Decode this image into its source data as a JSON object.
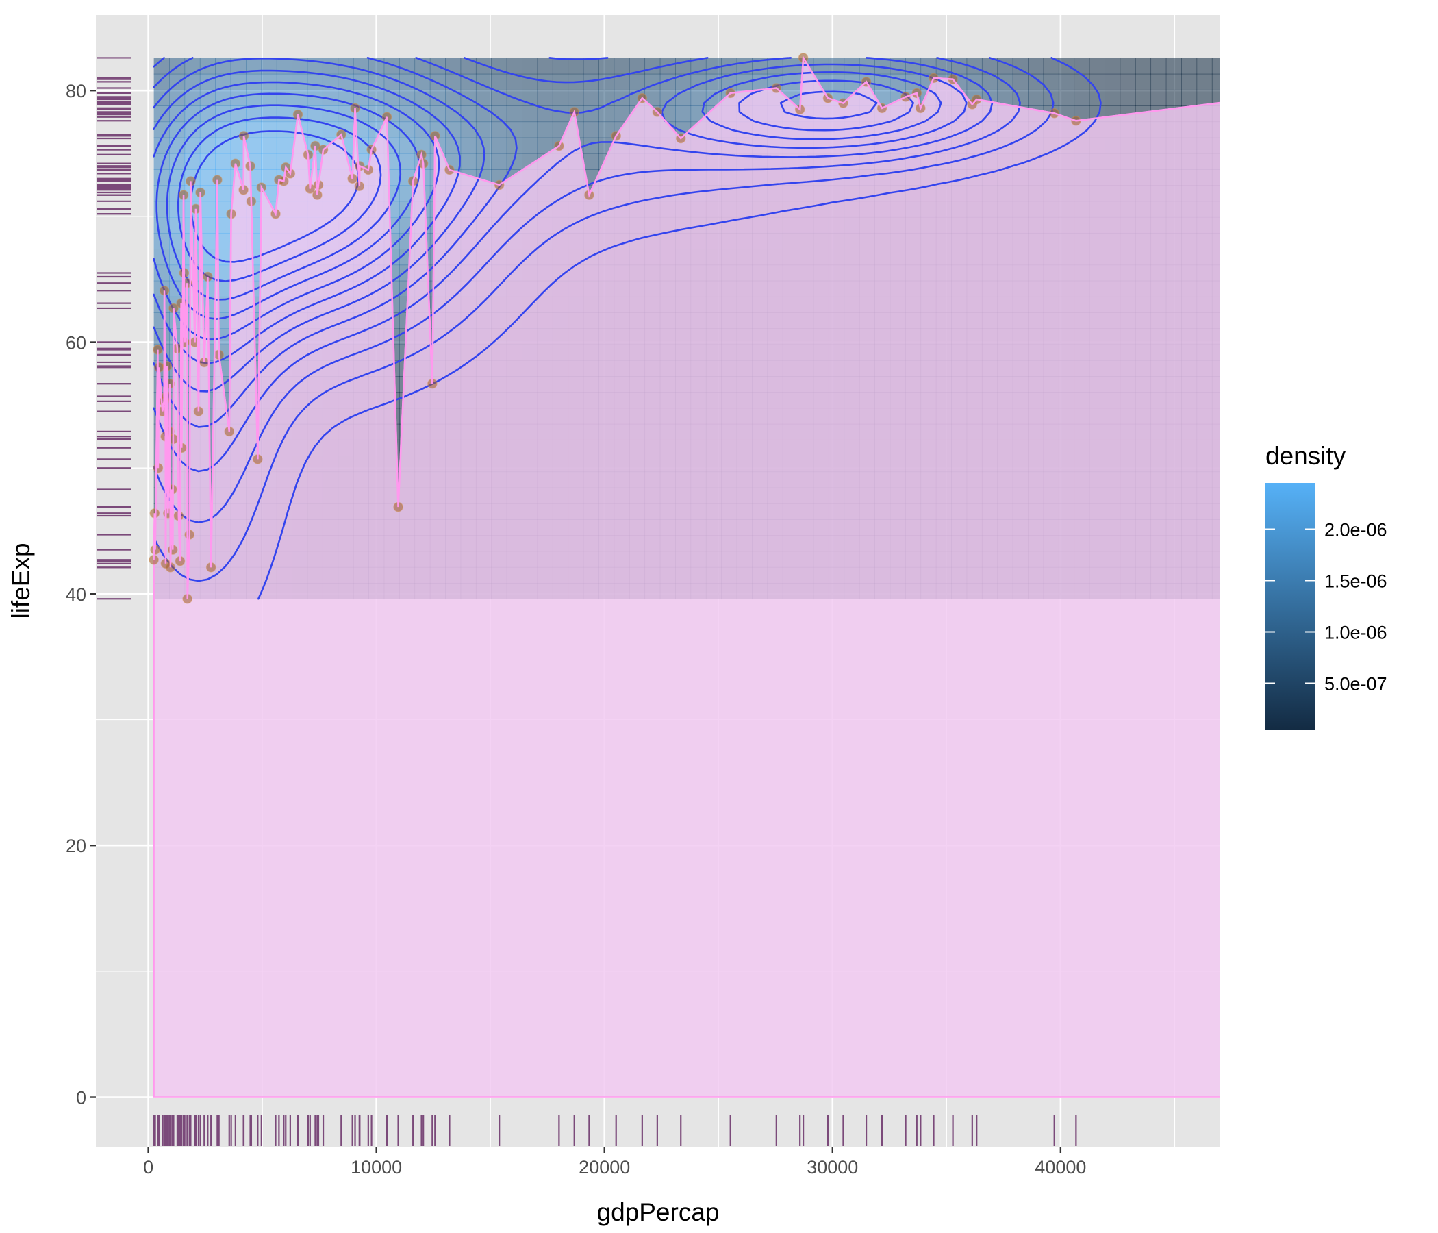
{
  "chart_data": {
    "type": "scatter",
    "title": "",
    "xlabel": "gdpPercap",
    "ylabel": "lifeExp",
    "xlim": [
      -2300,
      47000
    ],
    "ylim": [
      -4,
      86
    ],
    "x_ticks": [
      0,
      10000,
      20000,
      30000,
      40000
    ],
    "x_tick_labels": [
      "0",
      "10000",
      "20000",
      "30000",
      "40000"
    ],
    "y_ticks": [
      0,
      20,
      40,
      60,
      80
    ],
    "y_tick_labels": [
      "0",
      "20",
      "40",
      "60",
      "80"
    ],
    "grid": true,
    "colors": {
      "panel": "#e5e5e5",
      "grid": "#ffffff",
      "contour": "#3344ee",
      "path": "#ff99ee",
      "area_fill": "#f2c8f1",
      "rug": "#7b4a7a",
      "point": "#a05c2a",
      "density_low": "#132b43",
      "density_high": "#56b1f7"
    },
    "legend": {
      "title": "density",
      "placement": "right",
      "breaks": [
        "2.0e-06",
        "1.5e-06",
        "1.0e-06",
        "5.0e-07"
      ],
      "break_values": [
        2e-06,
        1.5e-06,
        1e-06,
        5e-07
      ],
      "range": [
        5e-08,
        2.45e-06
      ]
    },
    "density_peaks": [
      {
        "x": 6500,
        "y": 72,
        "value": 2.4e-06,
        "sx": 5200,
        "sy": 8
      },
      {
        "x": 2200,
        "y": 60,
        "value": 1e-06,
        "sx": 2500,
        "sy": 14
      },
      {
        "x": 30500,
        "y": 79,
        "value": 1.5e-06,
        "sx": 5500,
        "sy": 3
      },
      {
        "x": 18000,
        "y": 76,
        "value": 6e-07,
        "sx": 9000,
        "sy": 5
      }
    ],
    "area": {
      "x_range": [
        241,
        44900
      ],
      "y_range": [
        0,
        79.5
      ]
    },
    "series": [
      {
        "x": [
          241,
          277,
          300,
          413,
          430,
          470,
          620,
          691,
          706,
          753,
          759,
          800,
          824,
          863,
          926,
          944,
          970,
          1042,
          1071,
          1089,
          1107,
          1271,
          1328,
          1391,
          1441,
          1463,
          1545,
          1569,
          1593,
          1704,
          1713,
          1803,
          1856,
          2042,
          2082,
          2202,
          2281,
          2452,
          2605,
          2749,
          3025,
          3095,
          3548,
          3633,
          3820,
          4173,
          4185,
          4471,
          4513,
          4797,
          4959,
          5581,
          5728,
          5938,
          6025,
          6223,
          6557,
          7006,
          7092,
          7320,
          7408,
          7458,
          7670,
          8458,
          8948,
          9065,
          9253,
          9270,
          9645,
          9787,
          10461,
          10957,
          11606,
          11978,
          12057,
          12452,
          12570,
          13206,
          15390,
          18008,
          18678,
          19329,
          20510,
          21655,
          22316,
          23348,
          25523,
          27538,
          28570,
          28718,
          29796,
          30470,
          31480,
          32170,
          33206,
          33693,
          33860,
          34435,
          35278,
          36126,
          36319,
          39725,
          40676,
          47307
        ],
        "y": [
          42.7,
          46.4,
          43.5,
          59.4,
          50.0,
          58.0,
          54.5,
          55.3,
          64.1,
          52.5,
          42.4,
          55.7,
          58.1,
          46.4,
          52.9,
          56.7,
          42.1,
          48.3,
          43.5,
          52.3,
          62.7,
          59.5,
          46.2,
          42.6,
          63.1,
          51.6,
          71.7,
          65.5,
          60.0,
          64.7,
          39.6,
          44.7,
          72.8,
          60.0,
          70.6,
          54.5,
          71.9,
          58.4,
          65.2,
          42.1,
          72.9,
          59.0,
          52.9,
          70.2,
          74.2,
          72.1,
          76.4,
          74.0,
          71.2,
          50.7,
          72.3,
          70.2,
          72.9,
          72.8,
          73.9,
          73.4,
          78.1,
          74.9,
          72.2,
          75.6,
          71.7,
          72.5,
          75.3,
          76.5,
          73.0,
          78.6,
          72.4,
          74.0,
          73.7,
          75.3,
          77.9,
          46.9,
          72.8,
          74.9,
          74.2,
          56.7,
          76.4,
          73.7,
          72.5,
          75.6,
          78.3,
          71.7,
          76.4,
          79.4,
          78.3,
          76.2,
          79.8,
          80.2,
          78.5,
          82.6,
          79.4,
          79.0,
          80.7,
          78.6,
          79.5,
          79.8,
          78.6,
          81.0,
          80.9,
          78.9,
          79.3,
          78.2,
          77.6,
          79.1
        ]
      }
    ]
  }
}
